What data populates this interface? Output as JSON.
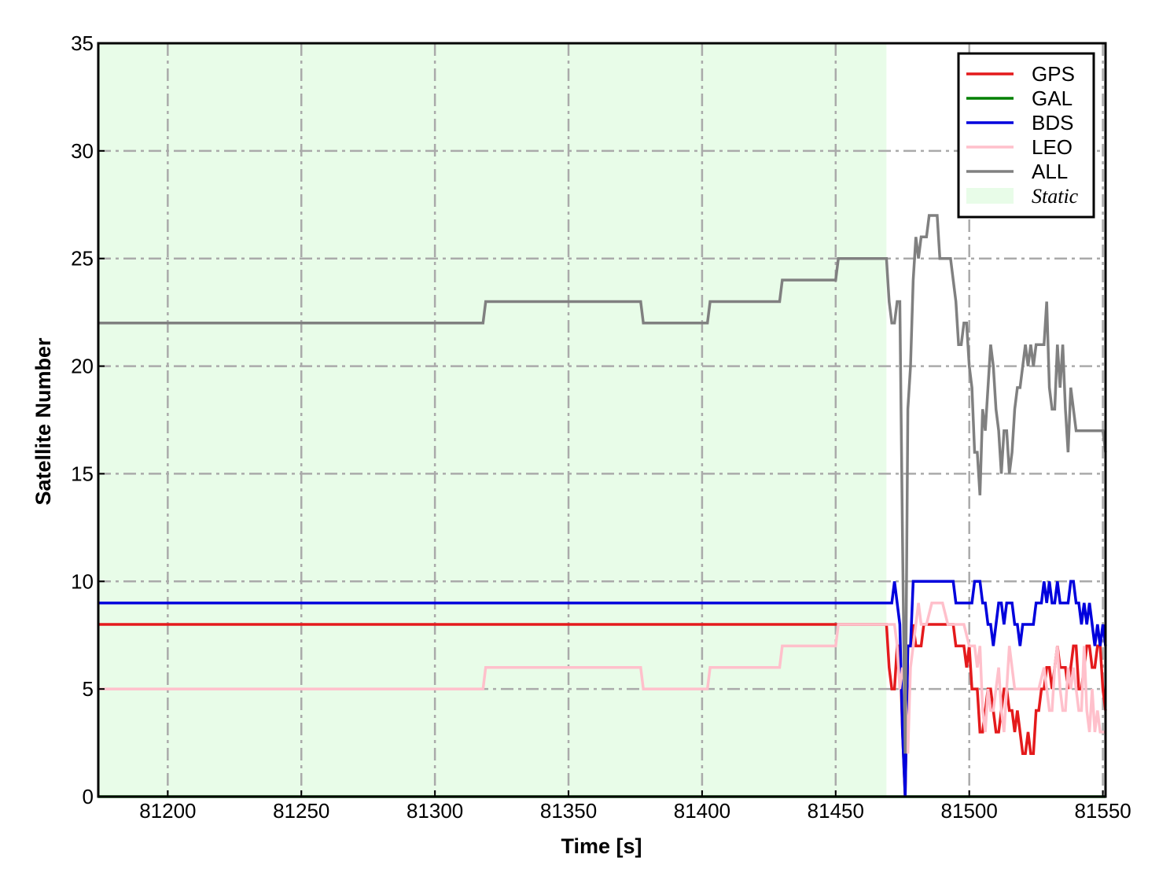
{
  "chart_data": {
    "type": "line",
    "title": "",
    "xlabel": "Time [s]",
    "ylabel": "Satellite Number",
    "xlim": [
      81174,
      81551
    ],
    "ylim": [
      0,
      35
    ],
    "xticks": [
      81200,
      81250,
      81300,
      81350,
      81400,
      81450,
      81500,
      81550
    ],
    "yticks": [
      0,
      5,
      10,
      15,
      20,
      25,
      30,
      35
    ],
    "grid": true,
    "legend_position": "top-right",
    "shaded_region": {
      "name": "Static",
      "x_start": 81174,
      "x_end": 81469,
      "color": "#e8fce8"
    },
    "series": [
      {
        "name": "GPS",
        "color": "#e41a1c",
        "x": [
          81174,
          81469,
          81470,
          81471,
          81472,
          81473,
          81474,
          81475,
          81476,
          81477,
          81478,
          81479,
          81480,
          81481,
          81482,
          81483,
          81484,
          81485,
          81486,
          81487,
          81488,
          81490,
          81492,
          81494,
          81495,
          81496,
          81497,
          81498,
          81499,
          81500,
          81501,
          81502,
          81503,
          81504,
          81505,
          81506,
          81507,
          81508,
          81509,
          81510,
          81511,
          81512,
          81513,
          81514,
          81515,
          81516,
          81517,
          81518,
          81519,
          81520,
          81521,
          81522,
          81523,
          81524,
          81525,
          81526,
          81527,
          81528,
          81529,
          81530,
          81531,
          81532,
          81533,
          81534,
          81535,
          81536,
          81537,
          81538,
          81539,
          81540,
          81541,
          81542,
          81543,
          81544,
          81545,
          81546,
          81547,
          81548,
          81549,
          81550,
          81551
        ],
        "y": [
          8,
          8,
          6,
          5,
          5,
          7,
          7,
          3,
          0,
          7,
          7,
          8,
          7,
          7,
          7,
          8,
          8,
          8,
          8,
          8,
          8,
          8,
          8,
          8,
          7,
          7,
          7,
          7,
          6,
          7,
          5,
          5,
          5,
          3,
          3,
          4,
          5,
          5,
          4,
          3,
          3,
          4,
          5,
          5,
          4,
          4,
          3,
          4,
          3,
          2,
          2,
          3,
          2,
          2,
          4,
          4,
          5,
          5,
          6,
          6,
          5,
          6,
          7,
          6,
          6,
          6,
          5,
          6,
          7,
          7,
          5,
          5,
          6,
          7,
          7,
          6,
          6,
          7,
          7,
          5,
          4
        ]
      },
      {
        "name": "GAL",
        "color": "#008000",
        "x": [
          81174,
          81551
        ],
        "y": [
          0,
          0
        ]
      },
      {
        "name": "BDS",
        "color": "#0000dd",
        "x": [
          81174,
          81469,
          81470,
          81471,
          81472,
          81473,
          81474,
          81475,
          81476,
          81477,
          81478,
          81479,
          81480,
          81481,
          81482,
          81483,
          81484,
          81485,
          81486,
          81487,
          81488,
          81489,
          81490,
          81491,
          81492,
          81493,
          81494,
          81495,
          81496,
          81497,
          81498,
          81499,
          81500,
          81501,
          81502,
          81503,
          81504,
          81505,
          81506,
          81507,
          81508,
          81509,
          81510,
          81511,
          81512,
          81513,
          81514,
          81515,
          81516,
          81517,
          81518,
          81519,
          81520,
          81521,
          81522,
          81523,
          81524,
          81525,
          81526,
          81527,
          81528,
          81529,
          81530,
          81531,
          81532,
          81533,
          81534,
          81535,
          81536,
          81537,
          81538,
          81539,
          81540,
          81541,
          81542,
          81543,
          81544,
          81545,
          81546,
          81547,
          81548,
          81549,
          81550,
          81551
        ],
        "y": [
          9,
          9,
          9,
          9,
          10,
          9,
          8,
          3,
          0,
          7,
          7,
          10,
          10,
          10,
          10,
          10,
          10,
          10,
          10,
          10,
          10,
          10,
          10,
          10,
          10,
          10,
          10,
          9,
          9,
          9,
          9,
          9,
          9,
          9,
          10,
          10,
          10,
          9,
          9,
          8,
          8,
          7,
          8,
          9,
          9,
          8,
          9,
          9,
          9,
          8,
          8,
          7,
          8,
          8,
          8,
          8,
          8,
          9,
          9,
          9,
          10,
          9,
          10,
          9,
          9,
          10,
          9,
          9,
          9,
          9,
          10,
          10,
          9,
          9,
          8,
          9,
          8,
          9,
          8,
          7,
          8,
          7,
          8,
          7
        ]
      },
      {
        "name": "LEO",
        "color": "#ffc0cb",
        "x": [
          81174,
          81318,
          81319,
          81377,
          81378,
          81402,
          81403,
          81429,
          81430,
          81450,
          81451,
          81472,
          81473,
          81474,
          81475,
          81476,
          81477,
          81478,
          81479,
          81480,
          81481,
          81482,
          81484,
          81486,
          81488,
          81490,
          81492,
          81494,
          81496,
          81498,
          81500,
          81502,
          81503,
          81504,
          81505,
          81506,
          81507,
          81508,
          81509,
          81510,
          81511,
          81512,
          81513,
          81514,
          81515,
          81516,
          81517,
          81518,
          81520,
          81522,
          81524,
          81526,
          81528,
          81529,
          81530,
          81531,
          81532,
          81533,
          81534,
          81535,
          81536,
          81537,
          81538,
          81539,
          81540,
          81541,
          81542,
          81543,
          81544,
          81545,
          81546,
          81547,
          81548,
          81549,
          81550,
          81551
        ],
        "y": [
          5,
          5,
          6,
          6,
          5,
          5,
          6,
          6,
          7,
          7,
          8,
          8,
          7,
          5,
          6,
          5,
          2,
          6,
          7,
          8,
          9,
          8,
          8,
          9,
          9,
          9,
          8,
          8,
          8,
          8,
          7,
          7,
          6,
          7,
          4,
          3,
          5,
          4,
          4,
          5,
          6,
          4,
          3,
          5,
          7,
          6,
          5,
          5,
          5,
          5,
          5,
          5,
          6,
          5,
          4,
          4,
          6,
          7,
          5,
          4,
          4,
          6,
          5,
          6,
          5,
          4,
          4,
          7,
          4,
          3,
          5,
          3,
          4,
          3,
          3,
          3
        ]
      },
      {
        "name": "ALL",
        "color": "#808080",
        "x": [
          81174,
          81318,
          81319,
          81377,
          81378,
          81402,
          81403,
          81429,
          81430,
          81450,
          81451,
          81469,
          81470,
          81471,
          81472,
          81473,
          81474,
          81475,
          81476,
          81477,
          81478,
          81479,
          81480,
          81481,
          81482,
          81483,
          81484,
          81485,
          81486,
          81487,
          81488,
          81489,
          81490,
          81491,
          81492,
          81493,
          81494,
          81495,
          81496,
          81497,
          81498,
          81499,
          81500,
          81501,
          81502,
          81503,
          81504,
          81505,
          81506,
          81507,
          81508,
          81509,
          81510,
          81511,
          81512,
          81513,
          81514,
          81515,
          81516,
          81517,
          81518,
          81519,
          81520,
          81521,
          81522,
          81523,
          81524,
          81525,
          81526,
          81527,
          81528,
          81529,
          81530,
          81531,
          81532,
          81533,
          81534,
          81535,
          81536,
          81537,
          81538,
          81539,
          81540,
          81541,
          81542,
          81543,
          81544,
          81545,
          81546,
          81547,
          81548,
          81549,
          81550,
          81551
        ],
        "y": [
          22,
          22,
          23,
          23,
          22,
          22,
          23,
          23,
          24,
          24,
          25,
          25,
          23,
          22,
          22,
          23,
          23,
          12,
          2,
          18,
          20,
          24,
          26,
          25,
          26,
          26,
          26,
          27,
          27,
          27,
          27,
          25,
          25,
          25,
          25,
          25,
          24,
          23,
          21,
          21,
          22,
          22,
          20,
          19,
          16,
          16,
          14,
          18,
          17,
          19,
          21,
          20,
          18,
          17,
          15,
          17,
          17,
          15,
          16,
          18,
          19,
          19,
          20,
          21,
          20,
          21,
          20,
          21,
          21,
          21,
          21,
          23,
          19,
          18,
          18,
          21,
          19,
          21,
          18,
          16,
          19,
          18,
          17,
          17,
          17,
          17,
          17,
          17,
          17,
          17,
          17,
          17,
          17,
          16
        ]
      }
    ],
    "legend": [
      {
        "label": "GPS",
        "color": "#e41a1c",
        "kind": "line",
        "italic": false
      },
      {
        "label": "GAL",
        "color": "#008000",
        "kind": "line",
        "italic": false
      },
      {
        "label": "BDS",
        "color": "#0000dd",
        "kind": "line",
        "italic": false
      },
      {
        "label": "LEO",
        "color": "#ffc0cb",
        "kind": "line",
        "italic": false
      },
      {
        "label": "ALL",
        "color": "#808080",
        "kind": "line",
        "italic": false
      },
      {
        "label": "Static",
        "color": "#e8fce8",
        "kind": "patch",
        "italic": true
      }
    ]
  }
}
